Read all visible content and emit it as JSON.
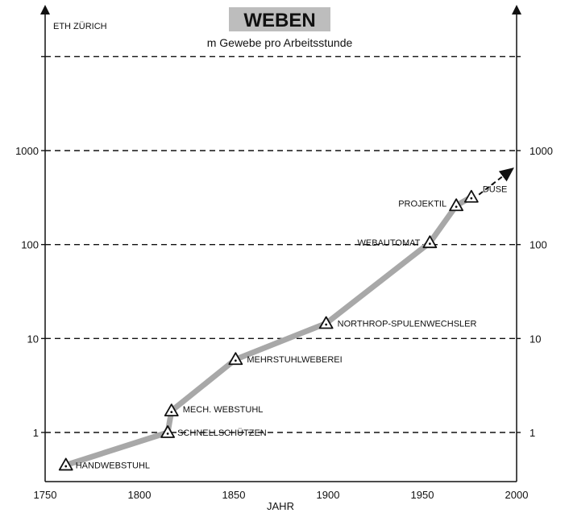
{
  "header": {
    "institution": "ETH ZÜRICH",
    "title": "WEBEN",
    "subtitle": "m Gewebe pro Arbeitsstunde"
  },
  "colors": {
    "line": "#a8a8a8",
    "title_bg": "#bdbdbd",
    "ink": "#111111"
  },
  "chart_data": {
    "type": "line",
    "title": "WEBEN",
    "subtitle": "m Gewebe pro Arbeitsstunde",
    "xlabel": "JAHR",
    "ylabel": "",
    "x_ticks": [
      1750,
      1800,
      1850,
      1900,
      1950,
      2000
    ],
    "xlim": [
      1750,
      2000
    ],
    "y_scale": "log",
    "y_ticks": [
      1,
      10,
      100,
      1000
    ],
    "y_tick_labels": [
      "1",
      "10",
      "100",
      "1000"
    ],
    "ylim": [
      0.3,
      30000
    ],
    "grid": "dashed horizontal lines at 1, 10, 100, 1000, 10000",
    "y_axis_right": true,
    "series": [
      {
        "points": [
          {
            "x": 1761,
            "y": 0.45,
            "label": "HANDWEBSTUHL"
          },
          {
            "x": 1815,
            "y": 1.0,
            "label": "SCHNELLSCHÜTZEN"
          },
          {
            "x": 1817,
            "y": 1.7,
            "label": "MECH. WEBSTUHL"
          },
          {
            "x": 1851,
            "y": 6,
            "label": "MEHRSTUHLWEBEREI"
          },
          {
            "x": 1899,
            "y": 14.5,
            "label": "NORTHROP-SPULENWECHSLER"
          },
          {
            "x": 1954,
            "y": 105,
            "label": "WEBAUTOMAT"
          },
          {
            "x": 1968,
            "y": 260,
            "label": "PROJEKTIL"
          },
          {
            "x": 1976,
            "y": 320,
            "label": "DÜSE"
          }
        ]
      }
    ],
    "trend_arrow": {
      "from": {
        "x": 1980,
        "y": 340
      },
      "to": {
        "x": 1996,
        "y": 600
      }
    }
  }
}
